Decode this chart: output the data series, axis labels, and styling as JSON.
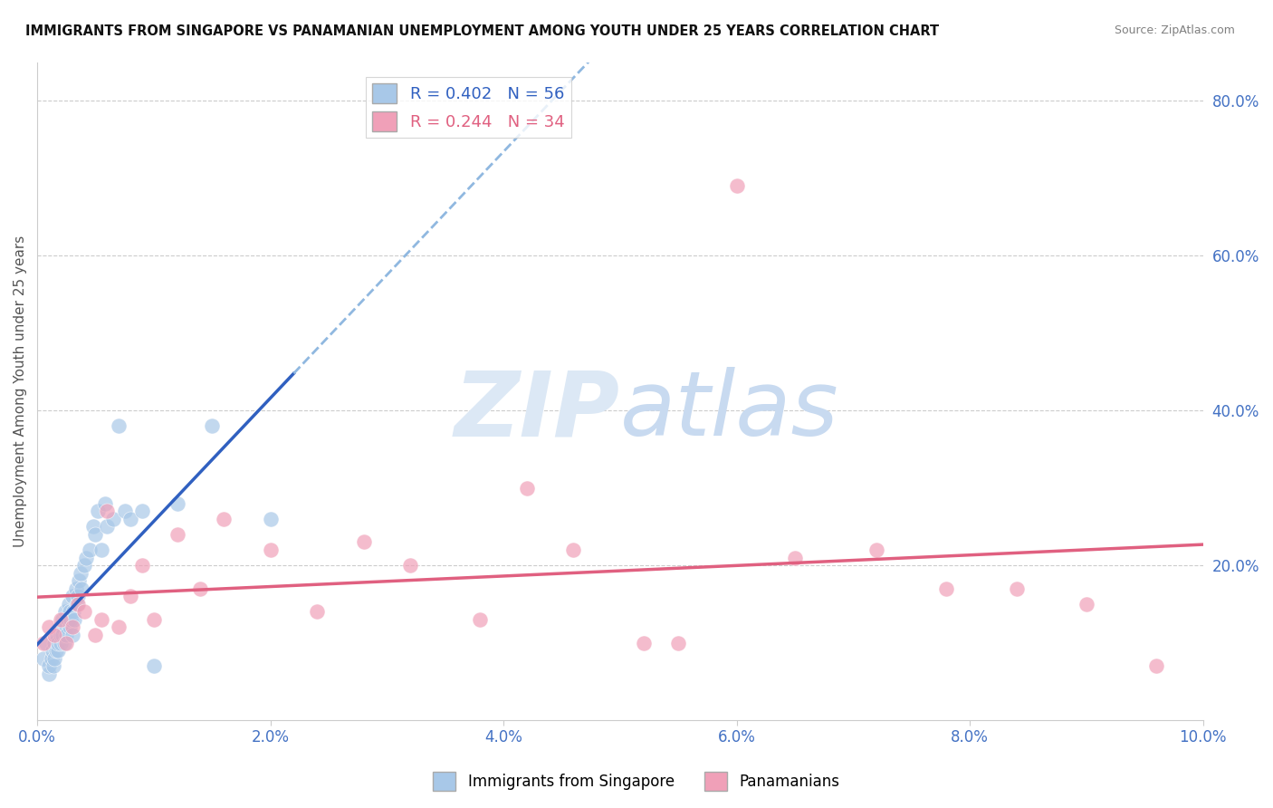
{
  "title": "IMMIGRANTS FROM SINGAPORE VS PANAMANIAN UNEMPLOYMENT AMONG YOUTH UNDER 25 YEARS CORRELATION CHART",
  "source": "Source: ZipAtlas.com",
  "ylabel": "Unemployment Among Youth under 25 years",
  "xlim": [
    0.0,
    0.1
  ],
  "ylim": [
    0.0,
    0.85
  ],
  "right_yticks": [
    0.2,
    0.4,
    0.6,
    0.8
  ],
  "right_ytick_labels": [
    "20.0%",
    "40.0%",
    "60.0%",
    "80.0%"
  ],
  "xtick_labels": [
    "0.0%",
    "2.0%",
    "4.0%",
    "6.0%",
    "8.0%",
    "10.0%"
  ],
  "xtick_values": [
    0.0,
    0.02,
    0.04,
    0.06,
    0.08,
    0.1
  ],
  "blue_R": 0.402,
  "blue_N": 56,
  "pink_R": 0.244,
  "pink_N": 34,
  "blue_color": "#a8c8e8",
  "pink_color": "#f0a0b8",
  "blue_line_color": "#3060c0",
  "pink_line_color": "#e06080",
  "blue_dashed_color": "#90b8e0",
  "watermark_color": "#dce8f5",
  "legend_label_blue": "Immigrants from Singapore",
  "legend_label_pink": "Panamanians",
  "blue_x": [
    0.0005,
    0.0008,
    0.001,
    0.001,
    0.0012,
    0.0013,
    0.0014,
    0.0015,
    0.0015,
    0.0016,
    0.0017,
    0.0018,
    0.0018,
    0.0019,
    0.002,
    0.002,
    0.0021,
    0.0022,
    0.0022,
    0.0023,
    0.0024,
    0.0025,
    0.0025,
    0.0026,
    0.0027,
    0.0028,
    0.0028,
    0.0029,
    0.003,
    0.003,
    0.0031,
    0.0032,
    0.0033,
    0.0034,
    0.0035,
    0.0036,
    0.0037,
    0.0038,
    0.004,
    0.0042,
    0.0045,
    0.0048,
    0.005,
    0.0052,
    0.0055,
    0.0058,
    0.006,
    0.0065,
    0.007,
    0.0075,
    0.008,
    0.009,
    0.01,
    0.012,
    0.015,
    0.02
  ],
  "blue_y": [
    0.08,
    0.1,
    0.06,
    0.07,
    0.08,
    0.09,
    0.07,
    0.1,
    0.08,
    0.09,
    0.11,
    0.09,
    0.1,
    0.12,
    0.1,
    0.11,
    0.12,
    0.13,
    0.11,
    0.1,
    0.14,
    0.12,
    0.11,
    0.13,
    0.15,
    0.12,
    0.14,
    0.13,
    0.11,
    0.16,
    0.14,
    0.13,
    0.17,
    0.15,
    0.16,
    0.18,
    0.19,
    0.17,
    0.2,
    0.21,
    0.22,
    0.25,
    0.24,
    0.27,
    0.22,
    0.28,
    0.25,
    0.26,
    0.38,
    0.27,
    0.26,
    0.27,
    0.07,
    0.28,
    0.38,
    0.26
  ],
  "pink_x": [
    0.0005,
    0.001,
    0.0015,
    0.002,
    0.0025,
    0.003,
    0.0035,
    0.004,
    0.005,
    0.0055,
    0.006,
    0.007,
    0.008,
    0.009,
    0.01,
    0.012,
    0.014,
    0.016,
    0.02,
    0.024,
    0.028,
    0.032,
    0.038,
    0.042,
    0.046,
    0.052,
    0.055,
    0.06,
    0.065,
    0.072,
    0.078,
    0.084,
    0.09,
    0.096
  ],
  "pink_y": [
    0.1,
    0.12,
    0.11,
    0.13,
    0.1,
    0.12,
    0.15,
    0.14,
    0.11,
    0.13,
    0.27,
    0.12,
    0.16,
    0.2,
    0.13,
    0.24,
    0.17,
    0.26,
    0.22,
    0.14,
    0.23,
    0.2,
    0.13,
    0.3,
    0.22,
    0.1,
    0.1,
    0.69,
    0.21,
    0.22,
    0.17,
    0.17,
    0.15,
    0.07
  ]
}
